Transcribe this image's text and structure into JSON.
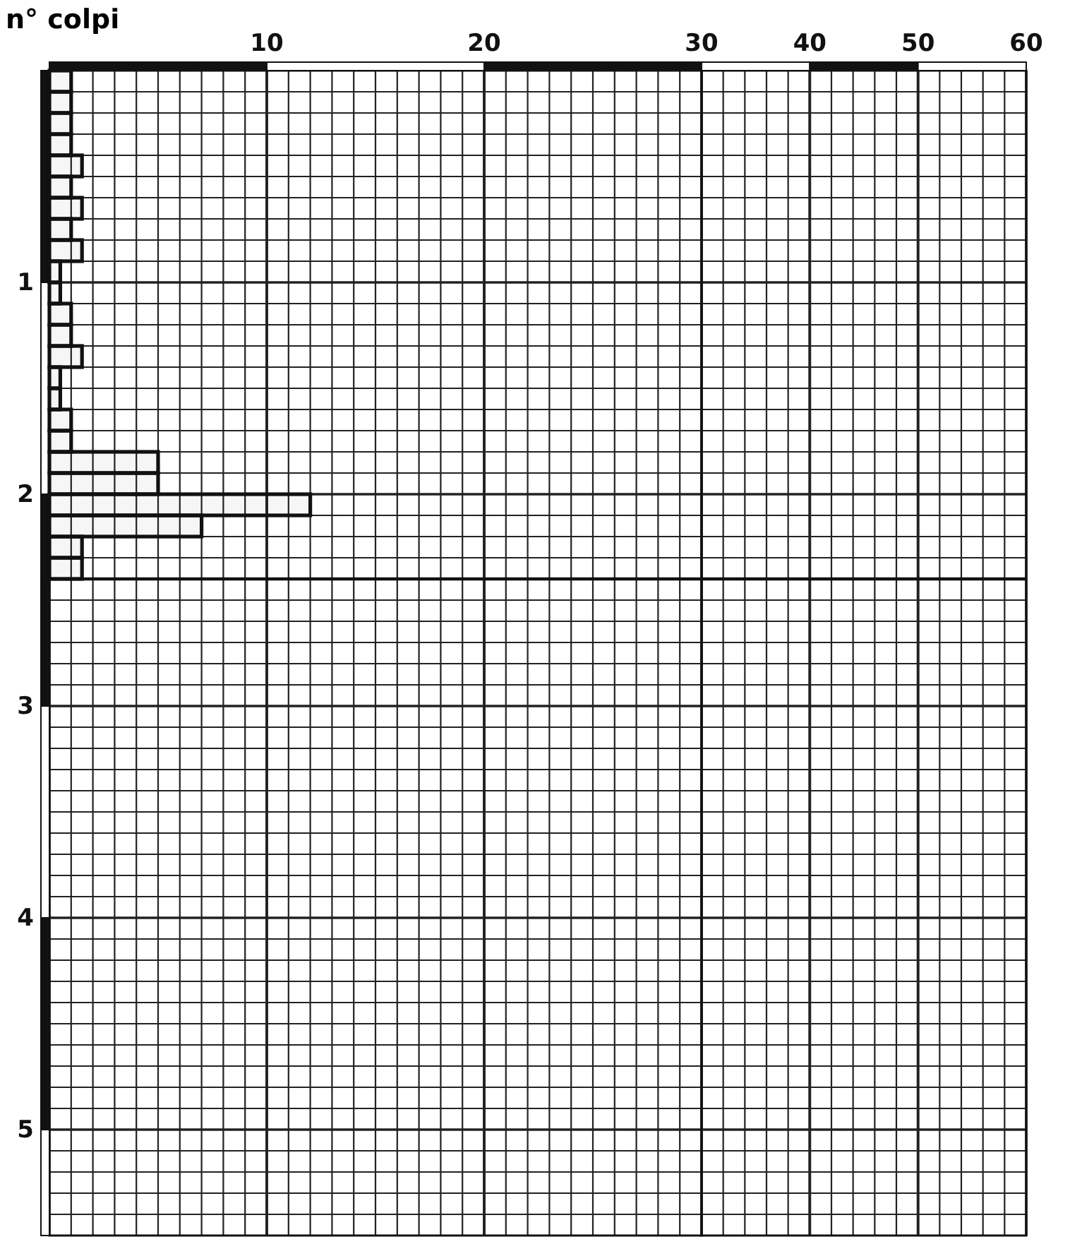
{
  "chart_data": [
    {
      "type": "bar",
      "orientation": "horizontal",
      "xlabel": "n° colpi",
      "x": [
        0.05,
        0.15,
        0.25,
        0.35,
        0.45,
        0.55,
        0.65,
        0.75,
        0.85,
        0.95,
        1.05,
        1.15,
        1.25,
        1.35,
        1.45,
        1.55,
        1.65,
        1.75,
        1.85,
        1.95,
        2.05,
        2.15,
        2.25,
        2.35
      ],
      "values": [
        1,
        1,
        1,
        1,
        1.5,
        1,
        1.5,
        1,
        1.5,
        0.5,
        0.5,
        1,
        1,
        1.5,
        0.5,
        0.5,
        1,
        1,
        5,
        5,
        12,
        7,
        1.5,
        1.5
      ],
      "color": "#111111",
      "xlim": [
        0,
        30
      ],
      "xticks": [
        10,
        20,
        30
      ],
      "ylim": [
        5.5,
        0
      ],
      "yticks": [
        1,
        2,
        3,
        4,
        5
      ],
      "ref_lines": [
        {
          "axis": "y",
          "value": 2.4,
          "color": "#111111"
        }
      ],
      "grid": true
    },
    {
      "type": "bar",
      "xlim": [
        30,
        60
      ],
      "xticks": [
        40,
        50,
        60
      ],
      "ylim": [
        5.5,
        0
      ],
      "yticks": [
        1,
        2,
        3,
        4,
        5
      ],
      "tick_labels": "x",
      "ref_lines": [
        {
          "axis": "y",
          "value": 2.4,
          "color": "#111111"
        }
      ],
      "grid": true
    }
  ]
}
